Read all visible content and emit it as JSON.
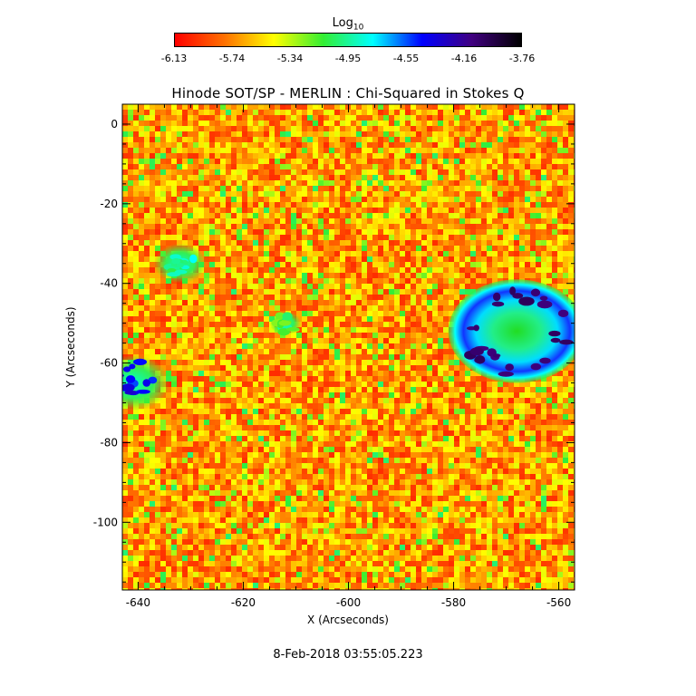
{
  "colorbar": {
    "title_base": "Log",
    "title_sub": "10",
    "ticks": [
      "-6.13",
      "-5.74",
      "-5.34",
      "-4.95",
      "-4.55",
      "-4.16",
      "-3.76"
    ],
    "colors": [
      "#ff0000",
      "#ff7000",
      "#ffff00",
      "#33ee33",
      "#00ffff",
      "#0000ff",
      "#400080",
      "#000000"
    ]
  },
  "footer": {
    "timestamp": "8-Feb-2018 03:55:05.223"
  },
  "chart_data": {
    "type": "heatmap",
    "title": "Hinode SOT/SP - MERLIN : Chi-Squared in Stokes Q",
    "xlabel": "X (Arcseconds)",
    "ylabel": "Y (Arcseconds)",
    "xlim": [
      -643,
      -557
    ],
    "ylim": [
      -117,
      5
    ],
    "x_ticks": [
      -640,
      -620,
      -600,
      -580,
      -560
    ],
    "y_ticks": [
      0,
      -20,
      -40,
      -60,
      -80,
      -100
    ],
    "value_range": [
      -6.13,
      -3.76
    ],
    "colormap": "rainbow (red=low, black=high)",
    "regions": [
      {
        "type": "sunspot",
        "center_x": -568,
        "center_y": -52,
        "radius": 13,
        "umbra_value": -4.1,
        "penumbra_value": -4.6
      },
      {
        "type": "plage",
        "center_x": -641,
        "center_y": -65,
        "radius": 7,
        "value": -4.4
      },
      {
        "type": "plage",
        "center_x": -632,
        "center_y": -35,
        "radius": 5,
        "value": -4.9
      },
      {
        "type": "plage",
        "center_x": -612,
        "center_y": -50,
        "radius": 3,
        "value": -5.1
      }
    ]
  }
}
